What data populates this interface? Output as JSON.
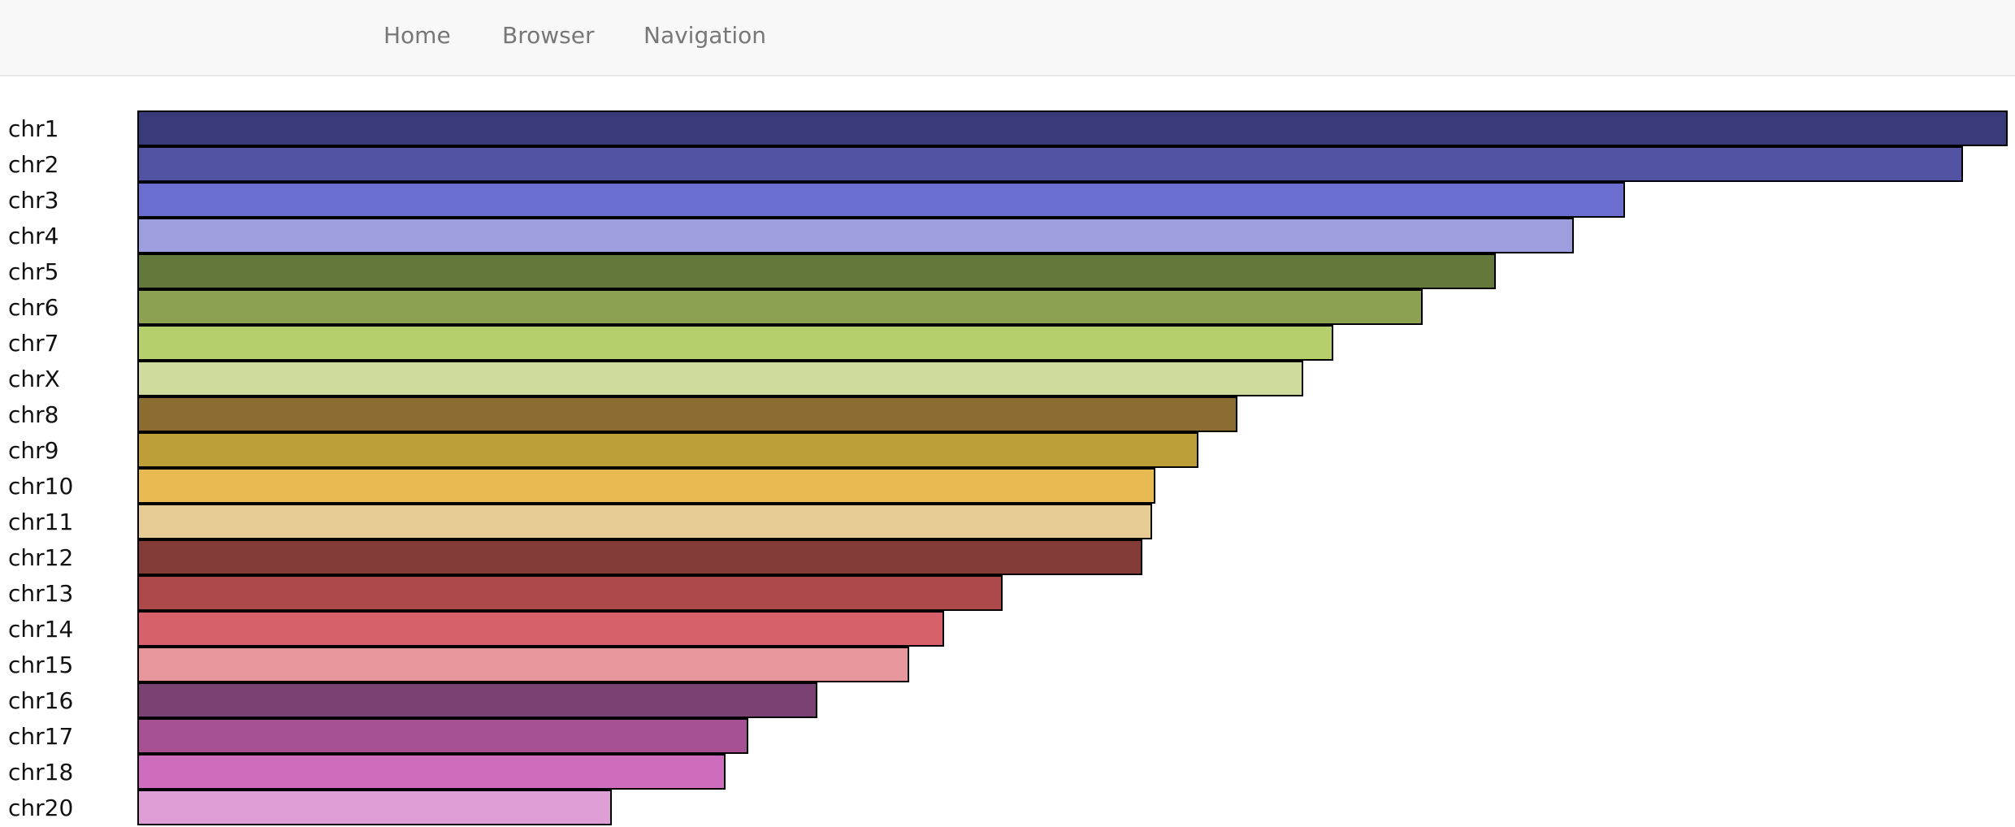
{
  "nav": {
    "items": [
      {
        "label": "Home"
      },
      {
        "label": "Browser"
      },
      {
        "label": "Navigation"
      }
    ]
  },
  "chart_data": {
    "type": "bar",
    "orientation": "horizontal",
    "title": "",
    "xlabel": "",
    "ylabel": "",
    "categories": [
      "chr1",
      "chr2",
      "chr3",
      "chr4",
      "chr5",
      "chr6",
      "chr7",
      "chrX",
      "chr8",
      "chr9",
      "chr10",
      "chr11",
      "chr12",
      "chr13",
      "chr14",
      "chr15",
      "chr16",
      "chr17",
      "chr18",
      "chr20"
    ],
    "values": [
      1.0,
      0.976,
      0.795,
      0.768,
      0.726,
      0.687,
      0.639,
      0.623,
      0.588,
      0.567,
      0.544,
      0.542,
      0.537,
      0.462,
      0.431,
      0.412,
      0.363,
      0.326,
      0.314,
      0.253
    ],
    "xlim": [
      0,
      1.0
    ],
    "colors": [
      "#393b79",
      "#5254a3",
      "#6b6ecf",
      "#9c9ede",
      "#637939",
      "#8ca252",
      "#b5cf6b",
      "#cedb9c",
      "#8c6d31",
      "#bd9e39",
      "#e7ba52",
      "#e7cb94",
      "#843c39",
      "#ad494a",
      "#d6616b",
      "#e7969c",
      "#7b4173",
      "#a55194",
      "#ce6dbd",
      "#de9ed6"
    ],
    "grid": false,
    "legend": "none"
  }
}
